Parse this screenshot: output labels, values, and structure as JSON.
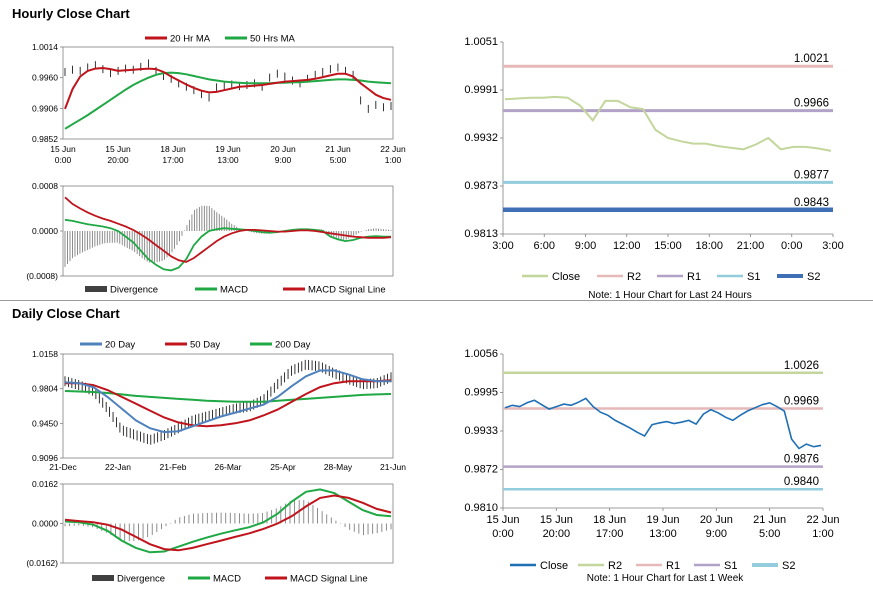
{
  "sections": {
    "hourly_title": "Hourly Close Chart",
    "daily_title": "Daily Close Chart"
  },
  "colors": {
    "ma_short": "#c0141c",
    "ma_long": "#1fa843",
    "ma_blue": "#4f81bd",
    "close_hourly": "#c3d69b",
    "r2": "#e6b9b8",
    "r1": "#b3a2c7",
    "s1": "#93cddd",
    "s2": "#3f6fb5",
    "close_daily": "#1f6fb5",
    "r2_daily": "#c3d69b",
    "r1_daily": "#e6b9b8",
    "s1_daily": "#b3a2c7",
    "s2_daily": "#93cddd",
    "divergence": "#808080"
  },
  "chart_data": [
    {
      "id": "hourly_price",
      "type": "line",
      "legend": [
        "20 Hr MA",
        "50 Hrs MA"
      ],
      "y_ticks": [
        "1.0014",
        "0.9960",
        "0.9906",
        "0.9852"
      ],
      "ylim": [
        0.9852,
        1.0014
      ],
      "x_labels": [
        [
          "15 Jun",
          "0:00"
        ],
        [
          "15 Jun",
          "20:00"
        ],
        [
          "18 Jun",
          "17:00"
        ],
        [
          "19 Jun",
          "13:00"
        ],
        [
          "20 Jun",
          "9:00"
        ],
        [
          "21 Jun",
          "5:00"
        ],
        [
          "22 Jun",
          "1:00"
        ]
      ],
      "series": [
        {
          "name": "Close",
          "values": [
            0.997,
            0.9974,
            0.9972,
            0.9978,
            0.9982,
            0.9975,
            0.9968,
            0.9972,
            0.9976,
            0.9974,
            0.9979,
            0.9985,
            0.9972,
            0.9963,
            0.9958,
            0.995,
            0.9944,
            0.9938,
            0.9931,
            0.9925,
            0.9943,
            0.9946,
            0.9948,
            0.9945,
            0.9947,
            0.995,
            0.9944,
            0.996,
            0.9967,
            0.9962,
            0.9955,
            0.995,
            0.9958,
            0.9965,
            0.997,
            0.9975,
            0.9978,
            0.9972,
            0.9965,
            0.992,
            0.9905,
            0.9912,
            0.9908,
            0.991
          ]
        },
        {
          "name": "20 Hr MA",
          "values": [
            0.9905,
            0.994,
            0.9962,
            0.9972,
            0.9976,
            0.9977,
            0.9975,
            0.9972,
            0.9973,
            0.9974,
            0.9975,
            0.9976,
            0.9975,
            0.997,
            0.9962,
            0.9955,
            0.9948,
            0.9942,
            0.9937,
            0.9934,
            0.9935,
            0.9938,
            0.9941,
            0.9944,
            0.9945,
            0.9946,
            0.9947,
            0.9949,
            0.9951,
            0.9953,
            0.9954,
            0.9955,
            0.9956,
            0.9958,
            0.9961,
            0.9964,
            0.9967,
            0.9967,
            0.9962,
            0.995,
            0.994,
            0.993,
            0.9924,
            0.9921
          ]
        },
        {
          "name": "50 Hrs MA",
          "values": [
            0.987,
            0.9878,
            0.9886,
            0.9894,
            0.9903,
            0.9912,
            0.9921,
            0.993,
            0.9939,
            0.9947,
            0.9954,
            0.996,
            0.9965,
            0.9968,
            0.9969,
            0.9968,
            0.9966,
            0.9963,
            0.996,
            0.9957,
            0.9955,
            0.9953,
            0.9952,
            0.9951,
            0.995,
            0.995,
            0.995,
            0.995,
            0.9951,
            0.9951,
            0.9952,
            0.9952,
            0.9953,
            0.9954,
            0.9955,
            0.9956,
            0.9957,
            0.9957,
            0.9956,
            0.9955,
            0.9953,
            0.9952,
            0.9951,
            0.995
          ]
        }
      ]
    },
    {
      "id": "hourly_macd",
      "type": "line",
      "legend": [
        "Divergence",
        "MACD",
        "MACD Signal Line"
      ],
      "y_ticks": [
        "0.0008",
        "0.0000",
        "(0.0008)"
      ],
      "ylim": [
        -0.0008,
        0.0008
      ],
      "series": [
        {
          "name": "MACD",
          "values": [
            0.0002,
            0.00018,
            0.00015,
            0.00012,
            0.0001,
            8e-05,
            5e-05,
            0.0,
            -0.0001,
            -0.0002,
            -0.00035,
            -0.0005,
            -0.0006,
            -0.00068,
            -0.0007,
            -0.00065,
            -0.0005,
            -0.00025,
            -0.0001,
            0.0,
            3e-05,
            5e-05,
            4e-05,
            3e-05,
            2e-05,
            0.0,
            -2e-05,
            -3e-05,
            -2e-05,
            0.0,
            2e-05,
            3e-05,
            3e-05,
            2e-05,
            0.0,
            -0.0001,
            -0.00015,
            -0.00018,
            -0.00016,
            -0.00012,
            -0.0001,
            -9e-05,
            -0.0001,
            -0.0001
          ]
        },
        {
          "name": "MACD Signal Line",
          "values": [
            0.0006,
            0.00048,
            0.0004,
            0.00033,
            0.00027,
            0.00022,
            0.00018,
            0.00013,
            8e-05,
            2e-05,
            -6e-05,
            -0.00015,
            -0.00025,
            -0.00035,
            -0.00045,
            -0.00052,
            -0.00055,
            -0.00048,
            -0.00038,
            -0.00028,
            -0.00018,
            -0.0001,
            -4e-05,
            0.0,
            2e-05,
            2e-05,
            1e-05,
            0.0,
            -1e-05,
            -1e-05,
            0.0,
            1e-05,
            1e-05,
            0.0,
            -2e-05,
            -4e-05,
            -6e-05,
            -8e-05,
            -0.0001,
            -0.00011,
            -0.00012,
            -0.00012,
            -0.00012,
            -0.00011
          ]
        }
      ]
    },
    {
      "id": "hourly_levels",
      "type": "line",
      "y_ticks": [
        "1.0051",
        "0.9991",
        "0.9932",
        "0.9873",
        "0.9813"
      ],
      "ylim": [
        0.9813,
        1.0051
      ],
      "x_labels": [
        "3:00",
        "6:00",
        "9:00",
        "12:00",
        "15:00",
        "18:00",
        "21:00",
        "0:00",
        "3:00"
      ],
      "levels": [
        {
          "name": "R2",
          "value": 1.0021,
          "label": "1.0021"
        },
        {
          "name": "R1",
          "value": 0.9966,
          "label": "0.9966"
        },
        {
          "name": "S1",
          "value": 0.9877,
          "label": "0.9877"
        },
        {
          "name": "S2",
          "value": 0.9843,
          "label": "0.9843"
        }
      ],
      "close": [
        0.998,
        0.9981,
        0.9982,
        0.9982,
        0.9983,
        0.9982,
        0.9972,
        0.9954,
        0.9978,
        0.9978,
        0.997,
        0.9968,
        0.9942,
        0.9932,
        0.9928,
        0.9925,
        0.9925,
        0.9922,
        0.992,
        0.9918,
        0.9924,
        0.9932,
        0.9918,
        0.9921,
        0.9921,
        0.9919,
        0.9916
      ],
      "legend": [
        "Close",
        "R2",
        "R1",
        "S1",
        "S2"
      ],
      "note": "Note: 1 Hour Chart for Last 24 Hours"
    },
    {
      "id": "daily_price",
      "type": "line",
      "legend": [
        "20 Day",
        "50 Day",
        "200 Day"
      ],
      "y_ticks": [
        "1.0158",
        "0.9804",
        "0.9450",
        "0.9096"
      ],
      "ylim": [
        0.9096,
        1.0158
      ],
      "x_labels": [
        "21-Dec",
        "22-Jan",
        "21-Feb",
        "26-Mar",
        "25-Apr",
        "28-May",
        "21-Jun"
      ],
      "series": [
        {
          "name": "Close",
          "values": [
            0.988,
            0.984,
            0.978,
            0.96,
            0.938,
            0.933,
            0.928,
            0.933,
            0.94,
            0.948,
            0.952,
            0.956,
            0.96,
            0.962,
            0.969,
            0.985,
            0.999,
            1.005,
            1.003,
            0.996,
            0.99,
            0.985,
            0.986,
            0.992
          ]
        },
        {
          "name": "20 Day",
          "values": [
            0.987,
            0.986,
            0.982,
            0.972,
            0.96,
            0.948,
            0.94,
            0.936,
            0.937,
            0.942,
            0.947,
            0.952,
            0.956,
            0.96,
            0.964,
            0.972,
            0.983,
            0.993,
            0.999,
            0.999,
            0.995,
            0.99,
            0.988,
            0.988
          ]
        },
        {
          "name": "50 Day",
          "values": [
            0.986,
            0.986,
            0.984,
            0.979,
            0.972,
            0.965,
            0.958,
            0.951,
            0.946,
            0.943,
            0.942,
            0.943,
            0.945,
            0.948,
            0.953,
            0.959,
            0.967,
            0.975,
            0.982,
            0.986,
            0.988,
            0.988,
            0.988,
            0.989
          ]
        },
        {
          "name": "200 Day",
          "values": [
            0.978,
            0.9775,
            0.977,
            0.976,
            0.9745,
            0.973,
            0.972,
            0.971,
            0.97,
            0.969,
            0.968,
            0.9675,
            0.967,
            0.967,
            0.967,
            0.968,
            0.969,
            0.97,
            0.971,
            0.972,
            0.973,
            0.974,
            0.9745,
            0.975
          ]
        }
      ]
    },
    {
      "id": "daily_macd",
      "type": "line",
      "legend": [
        "Divergence",
        "MACD",
        "MACD Signal Line"
      ],
      "y_ticks": [
        "0.0162",
        "0.0000",
        "(0.0162)"
      ],
      "ylim": [
        -0.0162,
        0.0162
      ],
      "series": [
        {
          "name": "MACD",
          "values": [
            0.0008,
            0.0005,
            -0.0005,
            -0.003,
            -0.007,
            -0.01,
            -0.0118,
            -0.0115,
            -0.0095,
            -0.0075,
            -0.0058,
            -0.0042,
            -0.0028,
            -0.0015,
            0.0005,
            0.004,
            0.009,
            0.013,
            0.014,
            0.0125,
            0.009,
            0.0055,
            0.0035,
            0.003
          ]
        },
        {
          "name": "MACD Signal Line",
          "values": [
            0.0015,
            0.001,
            0.0005,
            -0.0005,
            -0.0025,
            -0.0055,
            -0.0085,
            -0.0105,
            -0.011,
            -0.01,
            -0.0085,
            -0.007,
            -0.0055,
            -0.004,
            -0.0022,
            0.0,
            0.003,
            0.007,
            0.0105,
            0.0115,
            0.0105,
            0.0085,
            0.006,
            0.0045
          ]
        }
      ]
    },
    {
      "id": "daily_levels",
      "type": "line",
      "y_ticks": [
        "1.0056",
        "0.9995",
        "0.9933",
        "0.9872",
        "0.9810"
      ],
      "ylim": [
        0.981,
        1.0056
      ],
      "x_labels": [
        [
          "15 Jun",
          "0:00"
        ],
        [
          "15 Jun",
          "20:00"
        ],
        [
          "18 Jun",
          "17:00"
        ],
        [
          "19 Jun",
          "13:00"
        ],
        [
          "20 Jun",
          "9:00"
        ],
        [
          "21 Jun",
          "5:00"
        ],
        [
          "22 Jun",
          "1:00"
        ]
      ],
      "levels": [
        {
          "name": "R2",
          "value": 1.0026,
          "label": "1.0026"
        },
        {
          "name": "R1",
          "value": 0.9969,
          "label": "0.9969"
        },
        {
          "name": "S1",
          "value": 0.9876,
          "label": "0.9876"
        },
        {
          "name": "S2",
          "value": 0.984,
          "label": "0.9840"
        }
      ],
      "close": [
        0.997,
        0.9974,
        0.9972,
        0.9978,
        0.9982,
        0.9975,
        0.9968,
        0.9972,
        0.9976,
        0.9974,
        0.9979,
        0.9985,
        0.9972,
        0.9963,
        0.9958,
        0.995,
        0.9944,
        0.9938,
        0.9931,
        0.9925,
        0.9943,
        0.9946,
        0.9948,
        0.9945,
        0.9947,
        0.995,
        0.9944,
        0.996,
        0.9967,
        0.9962,
        0.9955,
        0.995,
        0.9958,
        0.9965,
        0.997,
        0.9975,
        0.9978,
        0.9972,
        0.9965,
        0.992,
        0.9905,
        0.9912,
        0.9908,
        0.991
      ],
      "legend": [
        "Close",
        "R2",
        "R1",
        "S1",
        "S2"
      ],
      "note": "Note: 1 Hour Chart for Last 1 Week"
    }
  ]
}
